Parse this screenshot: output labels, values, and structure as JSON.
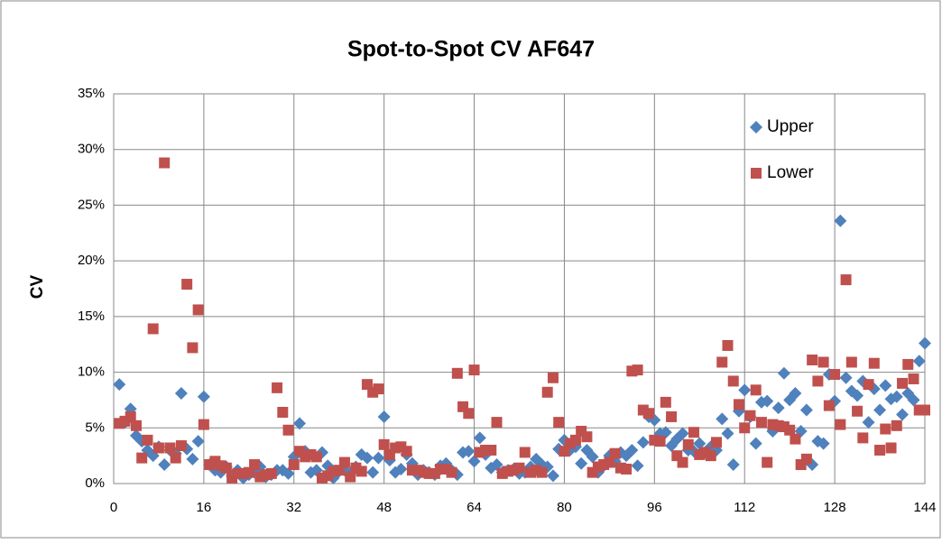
{
  "chart_data": {
    "type": "scatter",
    "title": "Spot-to-Spot CV AF647",
    "y_label": "CV",
    "x": [
      1,
      2,
      3,
      4,
      5,
      6,
      7,
      8,
      9,
      10,
      11,
      12,
      13,
      14,
      15,
      16,
      17,
      18,
      19,
      20,
      21,
      22,
      23,
      24,
      25,
      26,
      27,
      28,
      29,
      30,
      31,
      32,
      33,
      34,
      35,
      36,
      37,
      38,
      39,
      40,
      41,
      42,
      43,
      44,
      45,
      46,
      47,
      48,
      49,
      50,
      51,
      52,
      53,
      54,
      55,
      56,
      57,
      58,
      59,
      60,
      61,
      62,
      63,
      64,
      65,
      66,
      67,
      68,
      69,
      70,
      71,
      72,
      73,
      74,
      75,
      76,
      77,
      78,
      79,
      80,
      81,
      82,
      83,
      84,
      85,
      86,
      87,
      88,
      89,
      90,
      91,
      92,
      93,
      94,
      95,
      96,
      97,
      98,
      99,
      100,
      101,
      102,
      103,
      104,
      105,
      106,
      107,
      108,
      109,
      110,
      111,
      112,
      113,
      114,
      115,
      116,
      117,
      118,
      119,
      120,
      121,
      122,
      123,
      124,
      125,
      126,
      127,
      128,
      129,
      130,
      131,
      132,
      133,
      134,
      135,
      136,
      137,
      138,
      139,
      140,
      141,
      142,
      143,
      144
    ],
    "series": [
      {
        "name": "Upper",
        "color": "#4f81bd",
        "marker": "diamond",
        "values": [
          8.9,
          5.5,
          6.7,
          4.3,
          3.8,
          3.0,
          2.5,
          3.3,
          1.7,
          3.0,
          2.7,
          8.1,
          3.1,
          2.2,
          3.8,
          7.8,
          1.7,
          1.2,
          1.0,
          1.5,
          0.7,
          1.2,
          0.5,
          0.8,
          1.0,
          1.5,
          0.6,
          0.8,
          1.2,
          1.2,
          0.9,
          2.4,
          5.4,
          2.9,
          1.0,
          1.2,
          2.8,
          1.6,
          0.5,
          1.1,
          1.2,
          0.9,
          1.5,
          2.6,
          2.3,
          1.0,
          2.3,
          6.0,
          2.1,
          1.0,
          1.3,
          2.6,
          1.8,
          0.8,
          1.2,
          1.0,
          0.8,
          1.6,
          1.8,
          1.2,
          0.8,
          2.8,
          2.9,
          2.0,
          4.1,
          2.6,
          1.4,
          1.7,
          1.0,
          1.2,
          1.3,
          0.9,
          1.0,
          1.5,
          2.2,
          1.7,
          1.5,
          0.7,
          3.1,
          3.9,
          3.0,
          3.3,
          1.8,
          3.0,
          2.4,
          1.0,
          1.6,
          2.5,
          2.0,
          2.8,
          2.5,
          3.0,
          1.6,
          3.7,
          6.0,
          5.7,
          4.5,
          4.6,
          3.4,
          4.0,
          4.5,
          3.0,
          2.9,
          3.6,
          2.8,
          3.3,
          3.0,
          5.8,
          4.5,
          1.7,
          6.5,
          8.4,
          6.0,
          3.6,
          7.3,
          7.4,
          4.7,
          6.8,
          9.9,
          7.5,
          8.1,
          4.7,
          6.6,
          1.7,
          3.8,
          3.6,
          9.8,
          7.4,
          23.6,
          9.5,
          8.3,
          7.9,
          9.2,
          5.5,
          8.5,
          6.6,
          8.8,
          7.6,
          7.8,
          6.2,
          8.1,
          7.5,
          11.0,
          12.6
        ]
      },
      {
        "name": "Lower",
        "color": "#c0504d",
        "marker": "square",
        "values": [
          5.4,
          5.6,
          6.0,
          5.2,
          2.3,
          3.9,
          13.9,
          3.2,
          28.8,
          3.2,
          2.3,
          3.4,
          17.9,
          12.2,
          15.6,
          5.3,
          1.7,
          2.0,
          1.6,
          1.4,
          0.5,
          0.9,
          0.9,
          1.0,
          1.7,
          0.6,
          0.8,
          0.9,
          8.6,
          6.4,
          4.8,
          1.7,
          2.9,
          2.4,
          2.6,
          2.4,
          0.5,
          0.7,
          1.1,
          1.2,
          1.9,
          0.6,
          1.4,
          1.1,
          8.9,
          8.2,
          8.5,
          3.5,
          2.6,
          3.2,
          3.3,
          2.9,
          1.2,
          1.2,
          1.0,
          0.9,
          0.9,
          1.3,
          1.3,
          1.0,
          9.9,
          6.9,
          6.3,
          10.2,
          2.8,
          3.0,
          3.0,
          5.5,
          0.9,
          1.1,
          1.2,
          1.4,
          2.8,
          1.0,
          1.2,
          1.0,
          8.2,
          9.5,
          5.5,
          2.9,
          3.6,
          3.9,
          4.7,
          4.2,
          1.0,
          1.5,
          1.7,
          1.9,
          2.7,
          1.4,
          1.3,
          10.1,
          10.2,
          6.6,
          6.3,
          3.9,
          3.8,
          7.3,
          6.0,
          2.5,
          1.9,
          3.5,
          4.6,
          2.6,
          2.8,
          2.5,
          3.7,
          10.9,
          12.4,
          9.2,
          7.1,
          5.0,
          6.1,
          8.4,
          5.5,
          1.9,
          5.3,
          5.2,
          5.1,
          4.8,
          4.0,
          1.7,
          2.2,
          11.1,
          9.2,
          10.9,
          7.0,
          9.8,
          5.3,
          18.3,
          10.9,
          6.5,
          4.1,
          8.9,
          10.8,
          3.0,
          4.9,
          3.2,
          5.2,
          9.0,
          10.7,
          9.4,
          6.6,
          6.6
        ]
      }
    ],
    "xlim": [
      0,
      144
    ],
    "xticks": [
      0,
      16,
      32,
      48,
      64,
      80,
      96,
      112,
      128,
      144
    ],
    "ylim": [
      0,
      35
    ],
    "yticks": [
      {
        "value": 0,
        "label": "0%"
      },
      {
        "value": 5,
        "label": "5%"
      },
      {
        "value": 10,
        "label": "10%"
      },
      {
        "value": 15,
        "label": "15%"
      },
      {
        "value": 20,
        "label": "20%"
      },
      {
        "value": 25,
        "label": "25%"
      },
      {
        "value": 30,
        "label": "30%"
      },
      {
        "value": 35,
        "label": "35%"
      }
    ],
    "grid": true,
    "legend": "upper right"
  }
}
